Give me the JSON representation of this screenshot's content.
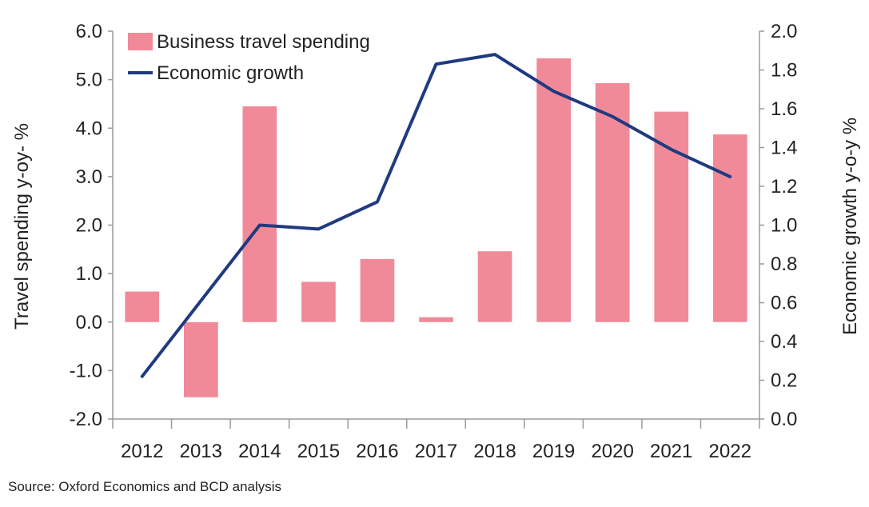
{
  "chart_data": {
    "type": "bar",
    "categories": [
      "2012",
      "2013",
      "2014",
      "2015",
      "2016",
      "2017",
      "2018",
      "2019",
      "2020",
      "2021",
      "2022"
    ],
    "series": [
      {
        "name": "Business travel spending",
        "type": "bar",
        "axis": "left",
        "values": [
          0.63,
          -1.55,
          4.45,
          0.83,
          1.3,
          0.1,
          1.46,
          5.44,
          4.93,
          4.34,
          3.87
        ]
      },
      {
        "name": "Economic growth",
        "type": "line",
        "axis": "right",
        "values": [
          0.22,
          0.61,
          1.0,
          0.98,
          1.12,
          1.83,
          1.88,
          1.69,
          1.56,
          1.39,
          1.25
        ]
      }
    ],
    "ylabel": "Travel spending y-oy- %",
    "y2label": "Economic growth y-o-y %",
    "ylim": [
      -2.0,
      6.0
    ],
    "y2lim": [
      0.0,
      2.0
    ],
    "yticks": [
      "6.0",
      "5.0",
      "4.0",
      "3.0",
      "2.0",
      "1.0",
      "0.0",
      "-1.0",
      "-2.0"
    ],
    "y2ticks": [
      "2.0",
      "1.8",
      "1.6",
      "1.4",
      "1.2",
      "1.0",
      "0.8",
      "0.6",
      "0.4",
      "0.2",
      "0.0"
    ],
    "grid": false,
    "legend_position": "top-left",
    "colors": {
      "bar": "#f08a98",
      "line": "#1f3a80",
      "axis": "#9a9a9a"
    }
  },
  "source_note": "Source: Oxford Economics and BCD analysis"
}
